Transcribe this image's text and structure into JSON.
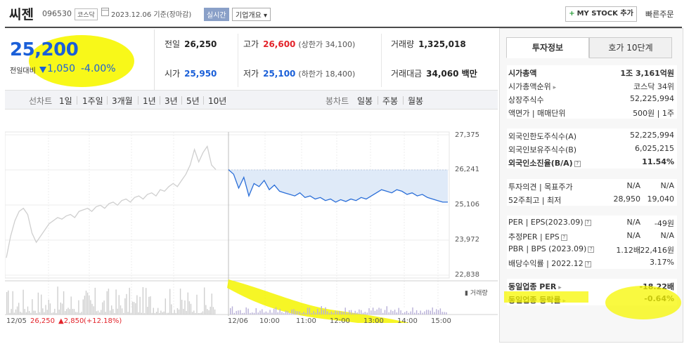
{
  "header": {
    "stock_name": "씨젠",
    "stock_code": "096530",
    "market": "코스닥",
    "date_text": "2023.12.06 기준(장마감)",
    "live_badge": "실시간",
    "company_button": "기업개요 ▾",
    "mystock_label": "MY STOCK 추가",
    "quick_order": "빠른주문"
  },
  "price": {
    "current": "25,200",
    "change_label": "전일대비",
    "change": "1,050",
    "change_pct": "-4.00%",
    "color": "#1a5fd8"
  },
  "summary": {
    "prev_label": "전일",
    "prev": "26,250",
    "high_label": "고가",
    "high": "26,600",
    "upper_limit": "(상한가 34,100)",
    "volume_label": "거래량",
    "volume": "1,325,018",
    "open_label": "시가",
    "open": "25,950",
    "low_label": "저가",
    "low": "25,100",
    "lower_limit": "(하한가 18,400)",
    "amount_label": "거래대금",
    "amount": "34,060 백만"
  },
  "chart_tabs": {
    "line_label": "선차트",
    "line_periods": [
      "1일",
      "1주일",
      "3개월",
      "1년",
      "3년",
      "5년",
      "10년"
    ],
    "candle_label": "봉차트",
    "candle_periods": [
      "일봉",
      "주봉",
      "월봉"
    ]
  },
  "chart_data": {
    "type": "line",
    "ylim": [
      22838,
      27375
    ],
    "y_ticks": [
      "27,375",
      "26,241",
      "25,106",
      "23,972",
      "22,838"
    ],
    "reference_line": 26241,
    "x_ticks": [
      "12/05",
      "12/06",
      "10:00",
      "11:00",
      "12:00",
      "13:00",
      "14:00",
      "15:00"
    ],
    "prev_day_footer": {
      "date": "12/05",
      "price": "26,250",
      "change": "▲2,850",
      "pct": "(+12.18%)"
    },
    "volume_legend": "거래량",
    "series": [
      {
        "name": "12/05",
        "color": "#cfcfcf",
        "values": [
          23400,
          24100,
          24600,
          24900,
          25000,
          24800,
          24200,
          23900,
          24100,
          24300,
          24500,
          24600,
          24700,
          24650,
          24750,
          24800,
          24700,
          24900,
          24950,
          25000,
          24900,
          25050,
          25100,
          25000,
          25150,
          25200,
          25100,
          25250,
          25300,
          25200,
          25350,
          25400,
          25300,
          25450,
          25500,
          25400,
          25600,
          25550,
          25700,
          25800,
          25700,
          25900,
          26100,
          26400,
          26900,
          26500,
          26800,
          27000,
          26400,
          26250
        ]
      },
      {
        "name": "12/06",
        "color": "#2a6ed8",
        "values": [
          26250,
          26100,
          25650,
          26000,
          25400,
          25800,
          25700,
          25900,
          25600,
          25750,
          25550,
          25500,
          25450,
          25400,
          25500,
          25350,
          25400,
          25300,
          25350,
          25250,
          25300,
          25200,
          25280,
          25220,
          25300,
          25250,
          25350,
          25300,
          25400,
          25500,
          25600,
          25550,
          25500,
          25600,
          25550,
          25450,
          25500,
          25400,
          25450,
          25350,
          25300,
          25250,
          25200,
          25200
        ]
      }
    ]
  },
  "right_panel": {
    "tabs": [
      "투자정보",
      "호가 10단계"
    ],
    "group1": [
      {
        "k": "시가총액",
        "v": "1조 3,161억원",
        "bold": true
      },
      {
        "k": "시가총액순위",
        "v": "코스닥 34위",
        "arrow": true
      },
      {
        "k": "상장주식수",
        "v": "52,225,994"
      },
      {
        "k": "액면가 | 매매단위",
        "v": "500원 | 1주"
      }
    ],
    "group2": [
      {
        "k": "외국인한도주식수(A)",
        "v": "52,225,994"
      },
      {
        "k": "외국인보유주식수(B)",
        "v": "6,025,215"
      },
      {
        "k": "외국인소진율(B/A)",
        "v": "11.54%",
        "bold": true,
        "icon": true
      }
    ],
    "group3": [
      {
        "k": "투자의견 | 목표주가",
        "v1": "N/A",
        "v": "N/A"
      },
      {
        "k": "52주최고 | 최저",
        "v1": "28,950",
        "v": "19,040"
      }
    ],
    "group4": [
      {
        "k": "PER | EPS(2023.09)",
        "v1": "N/A",
        "v": "-49원",
        "icon": true
      },
      {
        "k": "추정PER | EPS",
        "v1": "N/A",
        "v": "N/A",
        "icon": true
      },
      {
        "k": "PBR | BPS (2023.09)",
        "v1": "1.12배",
        "v": "22,416원",
        "icon": true
      },
      {
        "k": "배당수익률 | 2022.12",
        "v": "3.17%",
        "icon": true
      }
    ],
    "group5": [
      {
        "k": "동일업종 PER",
        "v": "-18.22배",
        "bold": true,
        "arrow": true
      },
      {
        "k": "동일업종 등락률",
        "v": "-0.64%",
        "bold": true,
        "arrow": true
      }
    ]
  }
}
